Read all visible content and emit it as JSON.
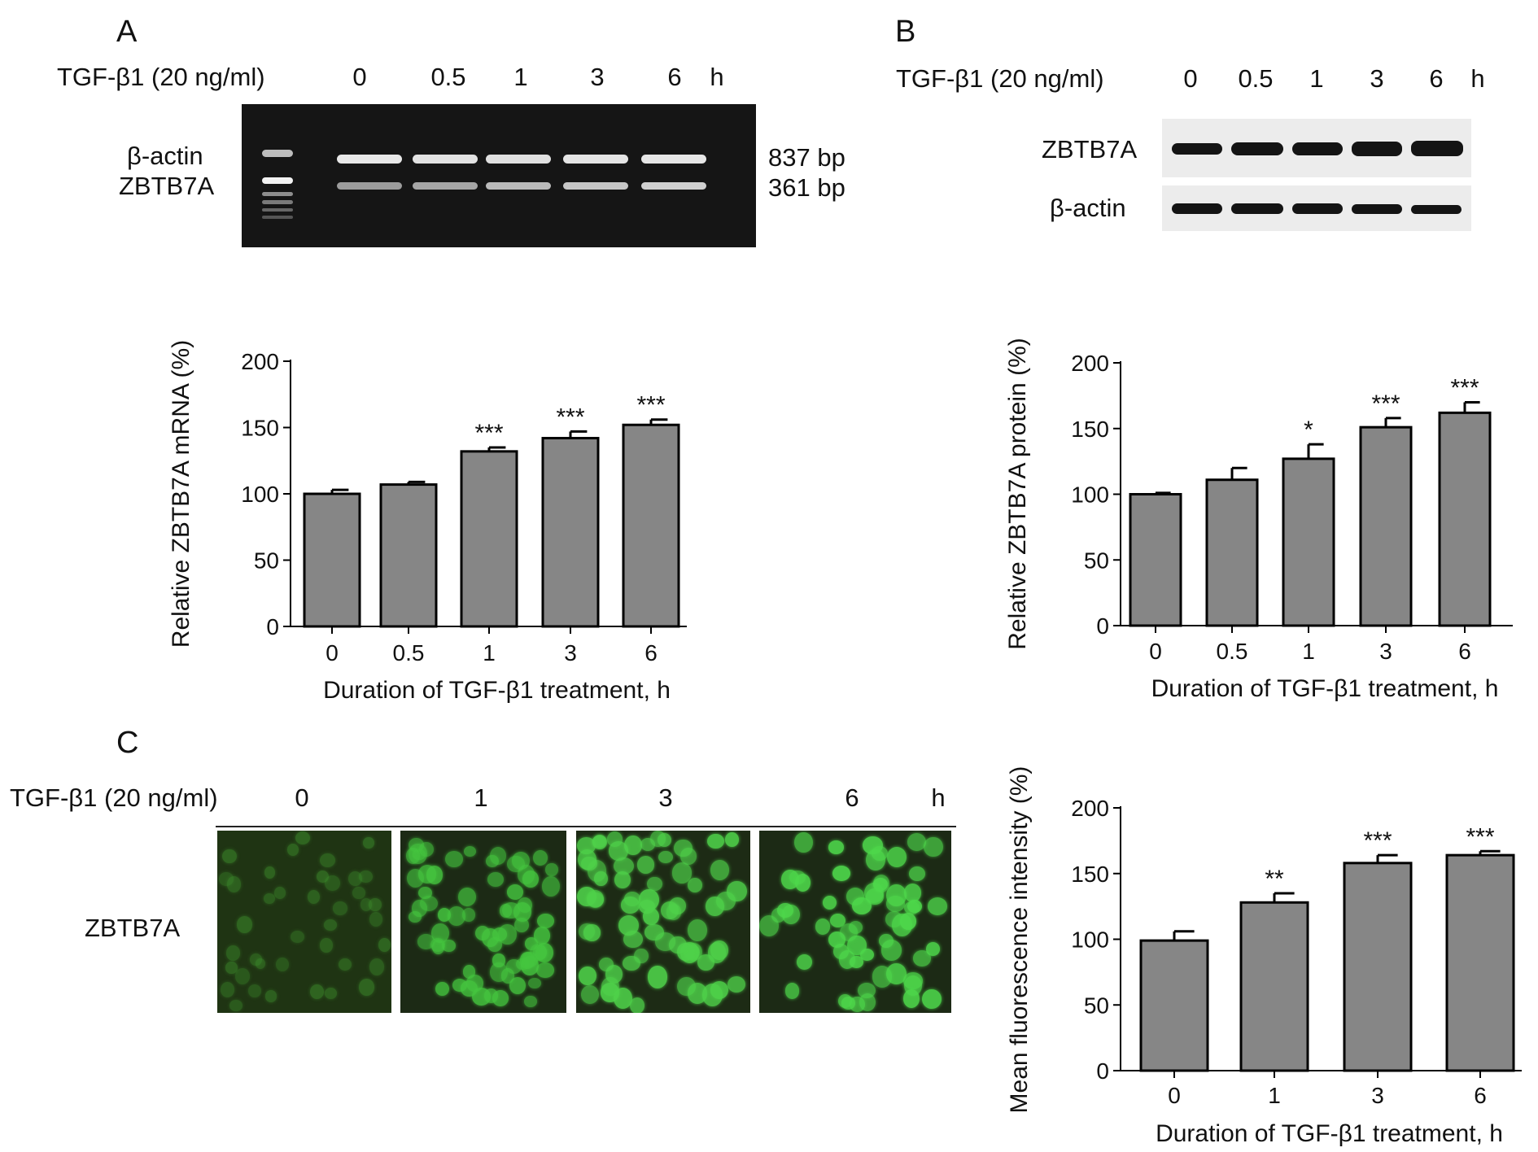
{
  "panels": {
    "a": {
      "letter": "A",
      "treatment_label": "TGF-β1 (20 ng/ml)",
      "lanes": [
        "0",
        "0.5",
        "1",
        "3",
        "6"
      ],
      "unit": "h",
      "row_labels": [
        "β-actin",
        "ZBTB7A"
      ],
      "sizes": [
        "837 bp",
        "361 bp"
      ]
    },
    "b": {
      "letter": "B",
      "treatment_label": "TGF-β1 (20 ng/ml)",
      "lanes": [
        "0",
        "0.5",
        "1",
        "3",
        "6"
      ],
      "unit": "h",
      "row_labels": [
        "ZBTB7A",
        "β-actin"
      ]
    },
    "c": {
      "letter": "C",
      "treatment_label": "TGF-β1 (20 ng/ml)",
      "lanes": [
        "0",
        "1",
        "3",
        "6"
      ],
      "unit": "h",
      "row_label": "ZBTB7A"
    }
  },
  "colors": {
    "bar_fill": "#868686",
    "bar_stroke": "#000000",
    "gel_background": "#151515",
    "gel_band": "#e4e4e4",
    "fluorescence_green": "#3fcf4f"
  },
  "chart_data": [
    {
      "id": "a",
      "type": "bar",
      "categories": [
        "0",
        "0.5",
        "1",
        "3",
        "6"
      ],
      "values": [
        100,
        107,
        132,
        142,
        152
      ],
      "errors": [
        3,
        2,
        3,
        5,
        4
      ],
      "annotations": [
        "",
        "",
        "***",
        "***",
        "***"
      ],
      "xlabel": "Duration of TGF-β1 treatment, h",
      "ylabel": "Relative ZBTB7A mRNA (%)",
      "ylim": [
        0,
        200
      ],
      "yticks": [
        "0",
        "50",
        "100",
        "150",
        "200"
      ]
    },
    {
      "id": "b",
      "type": "bar",
      "categories": [
        "0",
        "0.5",
        "1",
        "3",
        "6"
      ],
      "values": [
        100,
        111,
        127,
        151,
        162
      ],
      "errors": [
        1,
        9,
        11,
        7,
        8
      ],
      "annotations": [
        "",
        "",
        "*",
        "***",
        "***"
      ],
      "xlabel": "Duration of TGF-β1 treatment, h",
      "ylabel": "Relative ZBTB7A  protein (%)",
      "ylim": [
        0,
        200
      ],
      "yticks": [
        "0",
        "50",
        "100",
        "150",
        "200"
      ]
    },
    {
      "id": "c",
      "type": "bar",
      "categories": [
        "0",
        "1",
        "3",
        "6"
      ],
      "values": [
        99,
        128,
        158,
        164
      ],
      "errors": [
        7,
        7,
        6,
        3
      ],
      "annotations": [
        "",
        "**",
        "***",
        "***"
      ],
      "xlabel": "Duration of TGF-β1 treatment, h",
      "ylabel": "Mean fluorescence intensity (%)",
      "ylim": [
        0,
        200
      ],
      "yticks": [
        "0",
        "50",
        "100",
        "150",
        "200"
      ]
    }
  ]
}
